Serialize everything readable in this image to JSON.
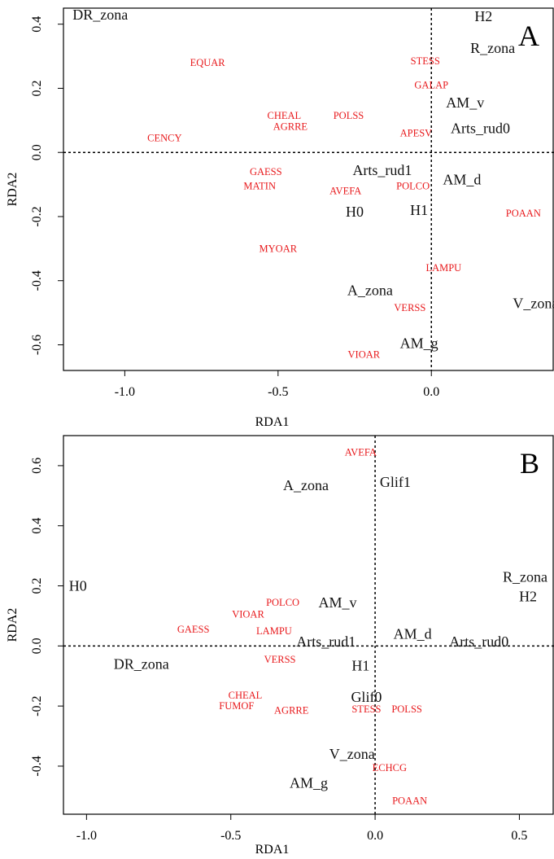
{
  "colors": {
    "species": "#e8191c",
    "env": "#111111"
  },
  "chart_data": [
    {
      "type": "scatter",
      "panel": "A",
      "xlabel": "RDA1",
      "ylabel": "RDA2",
      "xlim": [
        -1.2,
        0.4
      ],
      "ylim": [
        -0.68,
        0.45
      ],
      "xticks": [
        -1.0,
        -0.5,
        0.0
      ],
      "xtick_labels": [
        "-1.0",
        "-0.5",
        "0.0"
      ],
      "yticks": [
        0.4,
        0.2,
        0.0,
        -0.2,
        -0.4,
        -0.6
      ],
      "ytick_labels": [
        "0.4",
        "0.2",
        "0.0",
        "-0.2",
        "-0.4",
        "-0.6"
      ],
      "refline_x": 0,
      "refline_y": 0,
      "grid": false,
      "species": [
        {
          "label": "EQUAR",
          "x": -0.73,
          "y": 0.28
        },
        {
          "label": "STESS",
          "x": -0.02,
          "y": 0.285
        },
        {
          "label": "GALAP",
          "x": 0.0,
          "y": 0.21
        },
        {
          "label": "CHEAL",
          "x": -0.48,
          "y": 0.115
        },
        {
          "label": "POLSS",
          "x": -0.27,
          "y": 0.115
        },
        {
          "label": "AGRRE",
          "x": -0.46,
          "y": 0.08
        },
        {
          "label": "CENCY",
          "x": -0.87,
          "y": 0.045
        },
        {
          "label": "APESV",
          "x": -0.05,
          "y": 0.06
        },
        {
          "label": "GAESS",
          "x": -0.54,
          "y": -0.06
        },
        {
          "label": "MATIN",
          "x": -0.56,
          "y": -0.105
        },
        {
          "label": "POLCO",
          "x": -0.06,
          "y": -0.105
        },
        {
          "label": "AVEFA",
          "x": -0.28,
          "y": -0.12
        },
        {
          "label": "POAAN",
          "x": 0.3,
          "y": -0.19
        },
        {
          "label": "MYOAR",
          "x": -0.5,
          "y": -0.3
        },
        {
          "label": "LAMPU",
          "x": 0.04,
          "y": -0.36
        },
        {
          "label": "VERSS",
          "x": -0.07,
          "y": -0.485
        },
        {
          "label": "VIOAR",
          "x": -0.22,
          "y": -0.63
        }
      ],
      "env": [
        {
          "label": "DR_zona",
          "x": -1.08,
          "y": 0.43
        },
        {
          "label": "H2",
          "x": 0.17,
          "y": 0.425
        },
        {
          "label": "R_zona",
          "x": 0.2,
          "y": 0.325
        },
        {
          "label": "AM_v",
          "x": 0.11,
          "y": 0.155
        },
        {
          "label": "Arts_rud0",
          "x": 0.16,
          "y": 0.075
        },
        {
          "label": "Arts_rud1",
          "x": -0.16,
          "y": -0.055
        },
        {
          "label": "AM_d",
          "x": 0.1,
          "y": -0.085
        },
        {
          "label": "H0",
          "x": -0.25,
          "y": -0.185
        },
        {
          "label": "H1",
          "x": -0.04,
          "y": -0.18
        },
        {
          "label": "A_zona",
          "x": -0.2,
          "y": -0.43
        },
        {
          "label": "V_zona",
          "x": 0.34,
          "y": -0.47
        },
        {
          "label": "AM_g",
          "x": -0.04,
          "y": -0.595
        }
      ]
    },
    {
      "type": "scatter",
      "panel": "B",
      "xlabel": "RDA1",
      "ylabel": "RDA2",
      "xlim": [
        -1.08,
        0.62
      ],
      "ylim": [
        -0.56,
        0.7
      ],
      "xticks": [
        -1.0,
        -0.5,
        0.0,
        0.5
      ],
      "xtick_labels": [
        "-1.0",
        "-0.5",
        "0.0",
        "0.5"
      ],
      "yticks": [
        0.6,
        0.4,
        0.2,
        0.0,
        -0.2,
        -0.4
      ],
      "ytick_labels": [
        "0.6",
        "0.4",
        "0.2",
        "0.0",
        "-0.2",
        "-0.4"
      ],
      "refline_x": 0,
      "refline_y": 0,
      "grid": false,
      "species": [
        {
          "label": "AVEFA",
          "x": -0.05,
          "y": 0.645
        },
        {
          "label": "POLCO",
          "x": -0.32,
          "y": 0.145
        },
        {
          "label": "VIOAR",
          "x": -0.44,
          "y": 0.105
        },
        {
          "label": "GAESS",
          "x": -0.63,
          "y": 0.055
        },
        {
          "label": "LAMPU",
          "x": -0.35,
          "y": 0.05
        },
        {
          "label": "VERSS",
          "x": -0.33,
          "y": -0.045
        },
        {
          "label": "CHEAL",
          "x": -0.45,
          "y": -0.165
        },
        {
          "label": "FUMOF",
          "x": -0.48,
          "y": -0.2
        },
        {
          "label": "AGRRE",
          "x": -0.29,
          "y": -0.215
        },
        {
          "label": "STESS",
          "x": -0.03,
          "y": -0.21
        },
        {
          "label": "POLSS",
          "x": 0.11,
          "y": -0.21
        },
        {
          "label": "ECHCG",
          "x": 0.05,
          "y": -0.405
        },
        {
          "label": "POAAN",
          "x": 0.12,
          "y": -0.515
        }
      ],
      "env": [
        {
          "label": "A_zona",
          "x": -0.24,
          "y": 0.535
        },
        {
          "label": "Glif1",
          "x": 0.07,
          "y": 0.545
        },
        {
          "label": "H0",
          "x": -1.03,
          "y": 0.2
        },
        {
          "label": "R_zona",
          "x": 0.52,
          "y": 0.23
        },
        {
          "label": "H2",
          "x": 0.53,
          "y": 0.165
        },
        {
          "label": "AM_v",
          "x": -0.13,
          "y": 0.145
        },
        {
          "label": "AM_d",
          "x": 0.13,
          "y": 0.04
        },
        {
          "label": "Arts_rud1",
          "x": -0.17,
          "y": 0.015
        },
        {
          "label": "Arts_rud0",
          "x": 0.36,
          "y": 0.015
        },
        {
          "label": "DR_zona",
          "x": -0.81,
          "y": -0.06
        },
        {
          "label": "H1",
          "x": -0.05,
          "y": -0.065
        },
        {
          "label": "Glif0",
          "x": -0.03,
          "y": -0.17
        },
        {
          "label": "V_zona",
          "x": -0.08,
          "y": -0.36
        },
        {
          "label": "AM_g",
          "x": -0.23,
          "y": -0.455
        }
      ]
    }
  ]
}
